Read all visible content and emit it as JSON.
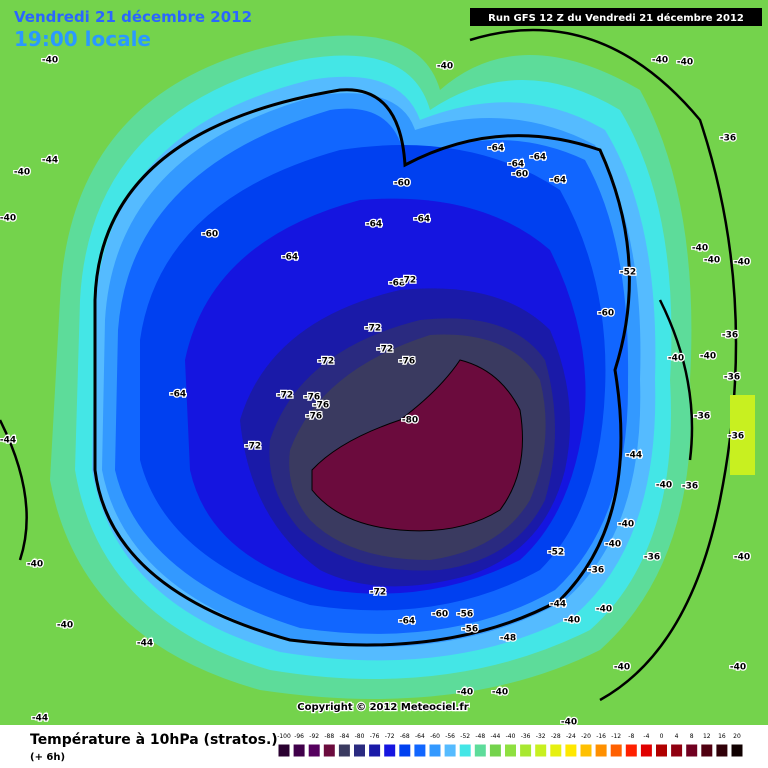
{
  "header": {
    "date": "Vendredi 21 décembre 2012",
    "time": "19:00 locale",
    "run": "Run GFS 12 Z du Vendredi 21 décembre 2012"
  },
  "map": {
    "contour_labels": [
      -40,
      -40,
      -40,
      -40,
      -44,
      -40,
      -40,
      -40,
      -40,
      -44,
      -44,
      -60,
      -64,
      -64,
      -60,
      -64,
      -64,
      -64,
      -64,
      -60,
      -64,
      -52,
      -60,
      -68,
      -72,
      -72,
      -72,
      -76,
      -72,
      -72,
      -76,
      -76,
      -76,
      -80,
      -72,
      -64,
      -72,
      -64,
      -60,
      -56,
      -56,
      -52,
      -48,
      -44,
      -40,
      -40,
      -40,
      -40,
      -40,
      -40,
      -40,
      -40,
      -36,
      -36,
      -40,
      -40,
      -36,
      -36,
      -36,
      -36,
      -40,
      -44,
      -40,
      -40,
      -36,
      -40,
      -40,
      -40,
      -36,
      -44
    ]
  },
  "legend": {
    "title": "Température à 10hPa (stratos.)",
    "subtitle": "(+ 6h)",
    "ticks": [
      -100,
      -96,
      -92,
      -88,
      -84,
      -80,
      -76,
      -72,
      -68,
      -64,
      -60,
      -56,
      -52,
      -48,
      -44,
      -40,
      -36,
      -32,
      -28,
      -24,
      -20,
      -16,
      -12,
      -8,
      -4,
      0,
      4,
      8,
      12,
      16,
      20
    ],
    "colors": [
      "#2a0030",
      "#40004a",
      "#55005e",
      "#6b0b3d",
      "#3a3a60",
      "#2a2a80",
      "#1a1aa8",
      "#1515e0",
      "#0040f0",
      "#1166ff",
      "#3399ff",
      "#55bbff",
      "#44e6e6",
      "#5ddc9a",
      "#74d34c",
      "#8fe040",
      "#a8e830",
      "#c8f020",
      "#e6f010",
      "#ffe800",
      "#ffc000",
      "#ff9000",
      "#ff6000",
      "#ff2000",
      "#e00000",
      "#b00000",
      "#900010",
      "#700020",
      "#500010",
      "#300008",
      "#100000"
    ]
  },
  "copyright": "Copyright © 2012 Meteociel.fr"
}
